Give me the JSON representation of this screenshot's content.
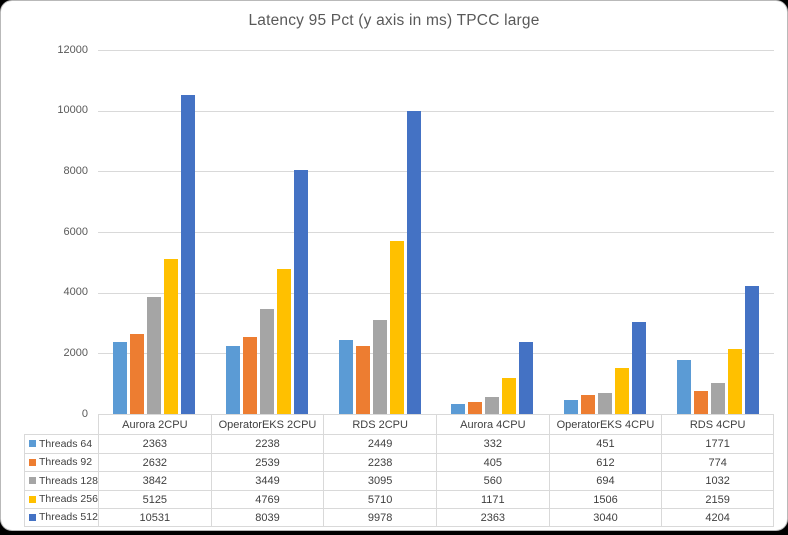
{
  "window": {
    "background_color": "#000000",
    "card_background": "#ffffff",
    "card_border_color": "#b9b9b9"
  },
  "colors": {
    "title_text": "#595959",
    "axis_text": "#595959",
    "table_text": "#404040",
    "gridline": "#d9d9d9",
    "table_border": "#d9d9d9"
  },
  "chart_data": {
    "type": "bar",
    "title": "Latency 95 Pct (y axis in ms) TPCC large",
    "xlabel": "",
    "ylabel": "",
    "categories": [
      "Aurora 2CPU",
      "OperatorEKS 2CPU",
      "RDS 2CPU",
      "Aurora 4CPU",
      "OperatorEKS 4CPU",
      "RDS 4CPU"
    ],
    "series": [
      {
        "name": "Threads 64",
        "color": "#5B9BD5",
        "values": [
          2363,
          2238,
          2449,
          332,
          451,
          1771
        ]
      },
      {
        "name": "Threads 92",
        "color": "#ED7D31",
        "values": [
          2632,
          2539,
          2238,
          405,
          612,
          774
        ]
      },
      {
        "name": "Threads 128",
        "color": "#A5A5A5",
        "values": [
          3842,
          3449,
          3095,
          560,
          694,
          1032
        ]
      },
      {
        "name": "Threads 256",
        "color": "#FFC000",
        "values": [
          5125,
          4769,
          5710,
          1171,
          1506,
          2159
        ]
      },
      {
        "name": "Threads 512",
        "color": "#4472C4",
        "values": [
          10531,
          8039,
          9978,
          2363,
          3040,
          4204
        ]
      }
    ],
    "ylim": [
      0,
      12000
    ],
    "yticks": [
      0,
      2000,
      4000,
      6000,
      8000,
      10000,
      12000
    ],
    "grid": true,
    "legend_position": "data-table-left",
    "data_table_shown": true
  }
}
